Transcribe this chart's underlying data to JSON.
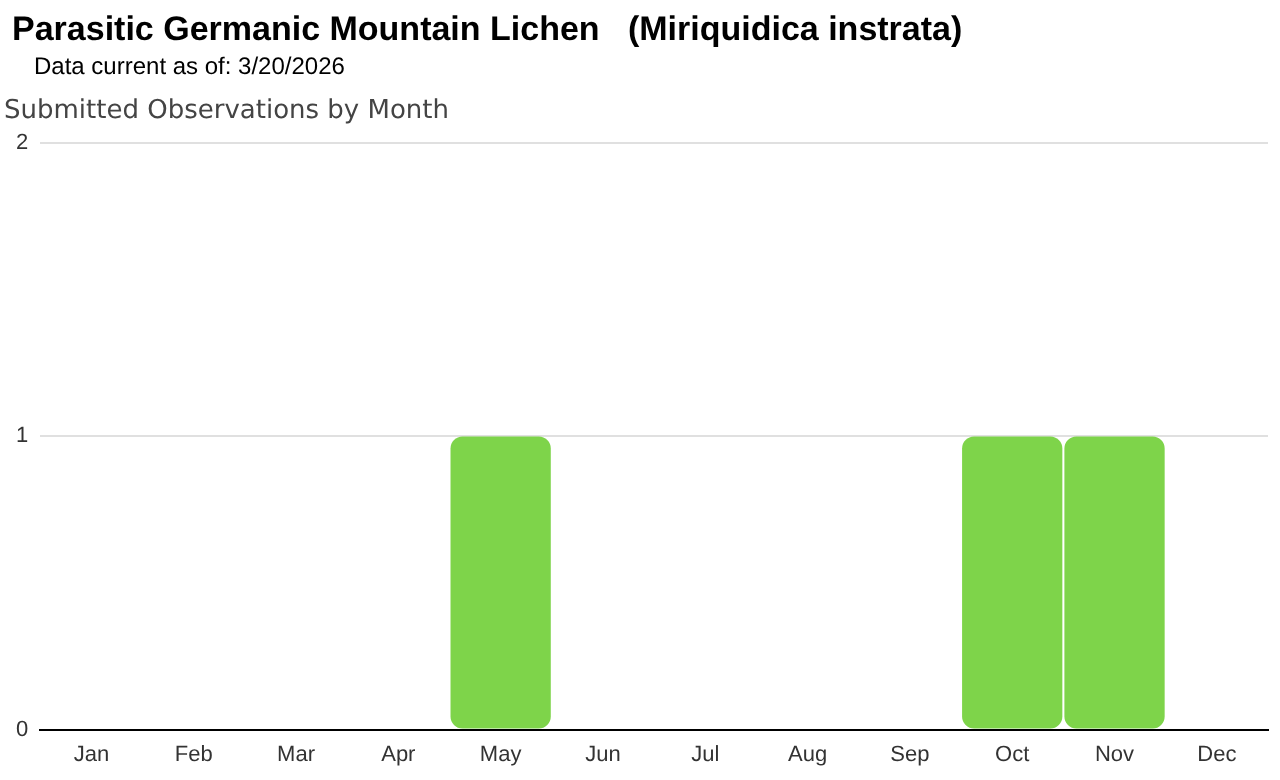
{
  "chart_data": {
    "type": "bar",
    "title": "Parasitic Germanic Mountain Lichen   (Miriquidica instrata)",
    "subtitle": "Data current as of: 3/20/2026",
    "annotations": [
      "Submitted Observations by Month"
    ],
    "categories": [
      "Jan",
      "Feb",
      "Mar",
      "Apr",
      "May",
      "Jun",
      "Jul",
      "Aug",
      "Sep",
      "Oct",
      "Nov",
      "Dec"
    ],
    "values": [
      0,
      0,
      0,
      0,
      1,
      0,
      0,
      0,
      0,
      1,
      1,
      0
    ],
    "color": "#7ed44a",
    "ylim": [
      0,
      2
    ],
    "yticks": [
      0,
      1,
      2
    ],
    "grid": "y",
    "legend": false
  }
}
